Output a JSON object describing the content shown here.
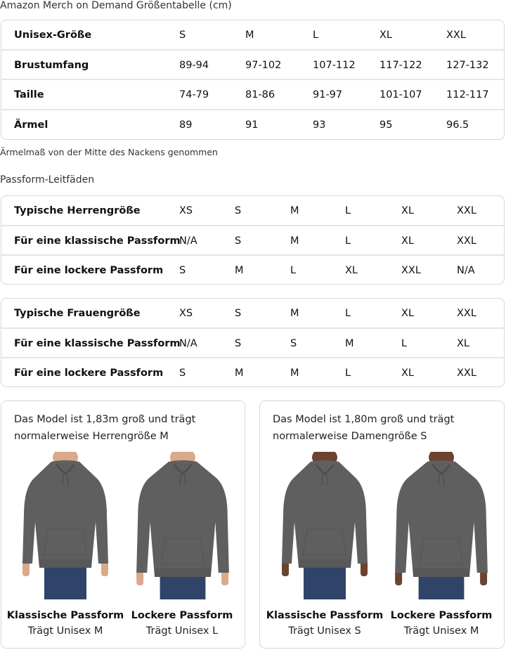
{
  "title": "Amazon Merch on Demand Größentabelle (cm)",
  "size_table": {
    "rows": [
      {
        "label": "Unisex-Größe",
        "values": [
          "S",
          "M",
          "L",
          "XL",
          "XXL"
        ]
      },
      {
        "label": "Brustumfang",
        "values": [
          "89-94",
          "97-102",
          "107-112",
          "117-122",
          "127-132"
        ]
      },
      {
        "label": "Taille",
        "values": [
          "74-79",
          "81-86",
          "91-97",
          "101-107",
          "112-117"
        ]
      },
      {
        "label": "Ärmel",
        "values": [
          "89",
          "91",
          "93",
          "95",
          "96.5"
        ]
      }
    ]
  },
  "note": "Ärmelmaß von der Mitte des Nackens genommen",
  "fit_title": "Passform-Leitfäden",
  "men_table": {
    "rows": [
      {
        "label": "Typische Herrengröße",
        "values": [
          "XS",
          "S",
          "M",
          "L",
          "XL",
          "XXL"
        ]
      },
      {
        "label": "Für eine klassische Passform",
        "values": [
          "N/A",
          "S",
          "M",
          "L",
          "XL",
          "XXL"
        ]
      },
      {
        "label": "Für eine lockere Passform",
        "values": [
          "S",
          "M",
          "L",
          "XL",
          "XXL",
          "N/A"
        ]
      }
    ]
  },
  "women_table": {
    "rows": [
      {
        "label": "Typische Frauengröße",
        "values": [
          "XS",
          "S",
          "M",
          "L",
          "XL",
          "XXL"
        ]
      },
      {
        "label": "Für eine klassische Passform",
        "values": [
          "N/A",
          "S",
          "S",
          "M",
          "L",
          "XL"
        ]
      },
      {
        "label": "Für eine lockere Passform",
        "values": [
          "S",
          "M",
          "M",
          "L",
          "XL",
          "XXL"
        ]
      }
    ]
  },
  "cards": [
    {
      "line1": "Das Model ist 1,83m groß und trägt",
      "line2": "normalerweise Herrengröße M",
      "figures": [
        {
          "fit": "Klassische Passform",
          "wears": "Trägt Unisex M"
        },
        {
          "fit": "Lockere Passform",
          "wears": "Trägt Unisex L"
        }
      ]
    },
    {
      "line1": "Das Model ist 1,80m groß und trägt",
      "line2": "normalerweise Damengröße S",
      "figures": [
        {
          "fit": "Klassische Passform",
          "wears": "Trägt Unisex S"
        },
        {
          "fit": "Lockere Passform",
          "wears": "Trägt Unisex M"
        }
      ]
    }
  ],
  "colors": {
    "hoodie": "#5f5f5f",
    "jeans": "#2f4468",
    "skin_light": "#d9a98a",
    "skin_dark": "#6b4330",
    "border": "#d5d9d9"
  }
}
